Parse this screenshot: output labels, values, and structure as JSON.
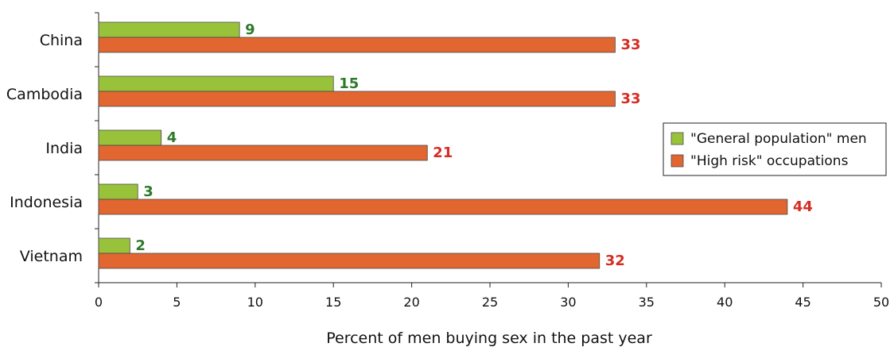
{
  "chart_data": {
    "type": "bar",
    "orientation": "horizontal",
    "categories": [
      "China",
      "Cambodia",
      "India",
      "Indonesia",
      "Vietnam"
    ],
    "series": [
      {
        "name": "\"General population\" men",
        "values": [
          9,
          15,
          4,
          2.5,
          2
        ],
        "labels": [
          "9",
          "15",
          "4",
          "3",
          "2"
        ],
        "color": "#99c23b",
        "label_color": "#2e7a2a"
      },
      {
        "name": "\"High risk\" occupations",
        "values": [
          33,
          33,
          21,
          44,
          32
        ],
        "labels": [
          "33",
          "33",
          "21",
          "44",
          "32"
        ],
        "color": "#e16630",
        "label_color": "#d42e24"
      }
    ],
    "xlim": [
      0,
      50
    ],
    "xticks": [
      0,
      5,
      10,
      15,
      20,
      25,
      30,
      35,
      40,
      45,
      50
    ],
    "xlabel": "Percent of men buying sex in the past year",
    "ylabel": "",
    "title": "",
    "grid": false,
    "legend_position": "right"
  }
}
